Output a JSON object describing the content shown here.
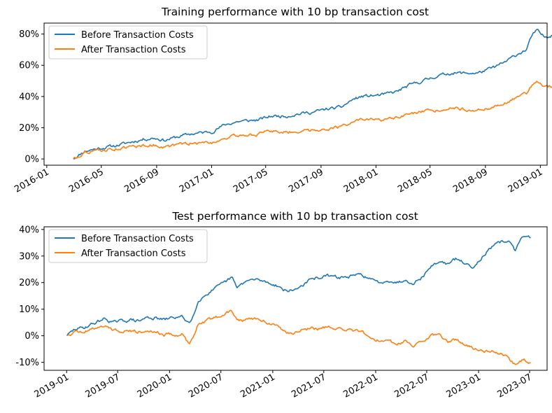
{
  "chart_data": [
    {
      "type": "line",
      "title": "Training performance with 10 bp transaction cost",
      "xlabel": "",
      "ylabel": "",
      "x_range": [
        "2015-12-26",
        "2019-01-16"
      ],
      "xticks": [
        {
          "date": "2016-01-01",
          "label": "2016-01"
        },
        {
          "date": "2016-05-01",
          "label": "2016-05"
        },
        {
          "date": "2016-09-01",
          "label": "2016-09"
        },
        {
          "date": "2017-01-01",
          "label": "2017-01"
        },
        {
          "date": "2017-05-01",
          "label": "2017-05"
        },
        {
          "date": "2017-09-01",
          "label": "2017-09"
        },
        {
          "date": "2018-01-01",
          "label": "2018-01"
        },
        {
          "date": "2018-05-01",
          "label": "2018-05"
        },
        {
          "date": "2018-09-01",
          "label": "2018-09"
        },
        {
          "date": "2019-01-01",
          "label": "2019-01"
        }
      ],
      "ylim": [
        -4,
        87
      ],
      "yticks": [
        {
          "value": 0,
          "label": "0%"
        },
        {
          "value": 20,
          "label": "20%"
        },
        {
          "value": 40,
          "label": "40%"
        },
        {
          "value": 60,
          "label": "60%"
        },
        {
          "value": 80,
          "label": "80%"
        }
      ],
      "grid": false,
      "legend_position": "top-left",
      "series": [
        {
          "name": "Before Transaction Costs",
          "color": "#1f77b4",
          "points": [
            [
              "2016-02-29",
              0
            ],
            [
              "2016-03-10",
              2
            ],
            [
              "2016-03-25",
              5
            ],
            [
              "2016-04-10",
              6
            ],
            [
              "2016-05-01",
              7
            ],
            [
              "2016-06-01",
              8.5
            ],
            [
              "2016-07-01",
              10.5
            ],
            [
              "2016-08-01",
              12.5
            ],
            [
              "2016-08-25",
              13.5
            ],
            [
              "2016-09-20",
              12
            ],
            [
              "2016-10-15",
              14
            ],
            [
              "2016-11-15",
              16
            ],
            [
              "2017-01-01",
              17.5
            ],
            [
              "2017-02-01",
              22
            ],
            [
              "2017-03-01",
              24
            ],
            [
              "2017-04-15",
              25
            ],
            [
              "2017-05-15",
              27.5
            ],
            [
              "2017-06-15",
              27.5
            ],
            [
              "2017-07-15",
              29
            ],
            [
              "2017-08-15",
              30
            ],
            [
              "2017-09-15",
              32
            ],
            [
              "2017-10-15",
              33
            ],
            [
              "2017-11-10",
              38
            ],
            [
              "2017-12-01",
              40
            ],
            [
              "2018-01-15",
              41
            ],
            [
              "2018-02-15",
              43
            ],
            [
              "2018-03-15",
              47
            ],
            [
              "2018-04-15",
              50
            ],
            [
              "2018-05-15",
              53
            ],
            [
              "2018-06-15",
              55
            ],
            [
              "2018-07-15",
              55
            ],
            [
              "2018-08-15",
              55
            ],
            [
              "2018-09-15",
              58
            ],
            [
              "2018-10-15",
              62
            ],
            [
              "2018-11-10",
              67
            ],
            [
              "2018-12-01",
              70
            ],
            [
              "2018-12-15",
              80
            ],
            [
              "2018-12-25",
              82
            ],
            [
              "2019-01-10",
              78
            ],
            [
              "2019-01-31",
              80
            ]
          ]
        },
        {
          "name": "After Transaction Costs",
          "color": "#ff7f0e",
          "points": [
            [
              "2016-02-29",
              0
            ],
            [
              "2016-03-10",
              1.5
            ],
            [
              "2016-03-25",
              4.5
            ],
            [
              "2016-04-10",
              5
            ],
            [
              "2016-05-01",
              5.5
            ],
            [
              "2016-06-01",
              6.5
            ],
            [
              "2016-07-01",
              7.5
            ],
            [
              "2016-08-01",
              8.5
            ],
            [
              "2016-08-25",
              9
            ],
            [
              "2016-09-20",
              7.5
            ],
            [
              "2016-10-15",
              9
            ],
            [
              "2016-11-15",
              10
            ],
            [
              "2017-01-01",
              10.5
            ],
            [
              "2017-02-01",
              13.5
            ],
            [
              "2017-03-01",
              15
            ],
            [
              "2017-04-15",
              16
            ],
            [
              "2017-05-15",
              18
            ],
            [
              "2017-06-15",
              17
            ],
            [
              "2017-07-15",
              18
            ],
            [
              "2017-08-15",
              18.5
            ],
            [
              "2017-09-15",
              19.5
            ],
            [
              "2017-10-15",
              20.5
            ],
            [
              "2017-11-10",
              24
            ],
            [
              "2017-12-01",
              25
            ],
            [
              "2018-01-15",
              25
            ],
            [
              "2018-02-15",
              26
            ],
            [
              "2018-03-15",
              28.5
            ],
            [
              "2018-04-15",
              30
            ],
            [
              "2018-05-15",
              31
            ],
            [
              "2018-06-15",
              33
            ],
            [
              "2018-07-15",
              32
            ],
            [
              "2018-08-15",
              31
            ],
            [
              "2018-09-15",
              33
            ],
            [
              "2018-10-15",
              36
            ],
            [
              "2018-11-10",
              39
            ],
            [
              "2018-12-01",
              42
            ],
            [
              "2018-12-15",
              48
            ],
            [
              "2018-12-25",
              50
            ],
            [
              "2019-01-10",
              46
            ],
            [
              "2019-01-31",
              47
            ]
          ]
        }
      ]
    },
    {
      "type": "line",
      "title": "Test performance with 10 bp transaction cost",
      "xlabel": "",
      "ylabel": "",
      "x_range": [
        "2018-10-13",
        "2023-09-01"
      ],
      "xticks": [
        {
          "date": "2019-01-01",
          "label": "2019-01"
        },
        {
          "date": "2019-07-01",
          "label": "2019-07"
        },
        {
          "date": "2020-01-01",
          "label": "2020-01"
        },
        {
          "date": "2020-07-01",
          "label": "2020-07"
        },
        {
          "date": "2021-01-01",
          "label": "2021-01"
        },
        {
          "date": "2021-07-01",
          "label": "2021-07"
        },
        {
          "date": "2022-01-01",
          "label": "2022-01"
        },
        {
          "date": "2022-07-01",
          "label": "2022-07"
        },
        {
          "date": "2023-01-01",
          "label": "2023-01"
        },
        {
          "date": "2023-07-01",
          "label": "2023-07"
        }
      ],
      "ylim": [
        -13,
        41
      ],
      "yticks": [
        {
          "value": -10,
          "label": "-10%"
        },
        {
          "value": 0,
          "label": "0%"
        },
        {
          "value": 10,
          "label": "10%"
        },
        {
          "value": 20,
          "label": "20%"
        },
        {
          "value": 30,
          "label": "30%"
        },
        {
          "value": 40,
          "label": "40%"
        }
      ],
      "grid": false,
      "legend_position": "top-left",
      "series": [
        {
          "name": "Before Transaction Costs",
          "color": "#1f77b4",
          "points": [
            [
              "2019-01-02",
              0
            ],
            [
              "2019-02-01",
              2.5
            ],
            [
              "2019-03-01",
              3
            ],
            [
              "2019-04-15",
              5
            ],
            [
              "2019-05-15",
              6.5
            ],
            [
              "2019-06-15",
              5
            ],
            [
              "2019-07-15",
              5.5
            ],
            [
              "2019-08-15",
              6
            ],
            [
              "2019-09-15",
              5.5
            ],
            [
              "2019-10-15",
              7
            ],
            [
              "2019-11-15",
              6.5
            ],
            [
              "2019-12-15",
              6
            ],
            [
              "2020-01-15",
              7
            ],
            [
              "2020-02-15",
              7
            ],
            [
              "2020-03-10",
              5
            ],
            [
              "2020-03-20",
              6
            ],
            [
              "2020-04-10",
              13
            ],
            [
              "2020-05-15",
              16
            ],
            [
              "2020-06-15",
              18
            ],
            [
              "2020-07-15",
              20
            ],
            [
              "2020-08-10",
              22
            ],
            [
              "2020-08-25",
              18
            ],
            [
              "2020-09-20",
              20
            ],
            [
              "2020-10-15",
              21
            ],
            [
              "2020-11-15",
              21
            ],
            [
              "2020-12-15",
              20
            ],
            [
              "2021-01-15",
              19
            ],
            [
              "2021-02-15",
              17
            ],
            [
              "2021-03-15",
              17
            ],
            [
              "2021-04-15",
              19
            ],
            [
              "2021-05-15",
              21
            ],
            [
              "2021-06-15",
              22
            ],
            [
              "2021-07-15",
              22.5
            ],
            [
              "2021-08-15",
              22
            ],
            [
              "2021-09-15",
              22
            ],
            [
              "2021-10-15",
              22.5
            ],
            [
              "2021-11-15",
              23
            ],
            [
              "2021-12-15",
              21
            ],
            [
              "2022-01-15",
              20
            ],
            [
              "2022-02-15",
              21
            ],
            [
              "2022-03-15",
              20
            ],
            [
              "2022-04-15",
              21
            ],
            [
              "2022-05-15",
              20
            ],
            [
              "2022-06-15",
              22
            ],
            [
              "2022-07-15",
              26
            ],
            [
              "2022-08-15",
              28
            ],
            [
              "2022-09-15",
              27
            ],
            [
              "2022-10-15",
              29
            ],
            [
              "2022-11-15",
              27
            ],
            [
              "2022-12-15",
              26
            ],
            [
              "2023-01-15",
              30
            ],
            [
              "2023-02-15",
              33
            ],
            [
              "2023-03-15",
              35
            ],
            [
              "2023-04-15",
              36
            ],
            [
              "2023-05-10",
              32
            ],
            [
              "2023-05-25",
              35
            ],
            [
              "2023-06-10",
              38
            ],
            [
              "2023-07-05",
              37
            ]
          ]
        },
        {
          "name": "After Transaction Costs",
          "color": "#ff7f0e",
          "points": [
            [
              "2019-01-02",
              0
            ],
            [
              "2019-02-01",
              1.5
            ],
            [
              "2019-03-01",
              1.5
            ],
            [
              "2019-04-15",
              3
            ],
            [
              "2019-05-15",
              4
            ],
            [
              "2019-06-15",
              2
            ],
            [
              "2019-07-15",
              2
            ],
            [
              "2019-08-15",
              2
            ],
            [
              "2019-09-15",
              1.5
            ],
            [
              "2019-10-15",
              2.5
            ],
            [
              "2019-11-15",
              1.5
            ],
            [
              "2019-12-15",
              0.5
            ],
            [
              "2020-01-15",
              0.5
            ],
            [
              "2020-02-15",
              0.5
            ],
            [
              "2020-03-10",
              -3
            ],
            [
              "2020-03-20",
              -1
            ],
            [
              "2020-04-10",
              4
            ],
            [
              "2020-05-15",
              6
            ],
            [
              "2020-06-15",
              7
            ],
            [
              "2020-07-15",
              8
            ],
            [
              "2020-08-10",
              9.5
            ],
            [
              "2020-08-25",
              6
            ],
            [
              "2020-09-20",
              6
            ],
            [
              "2020-10-15",
              6.5
            ],
            [
              "2020-11-15",
              6
            ],
            [
              "2020-12-15",
              5
            ],
            [
              "2021-01-15",
              3.5
            ],
            [
              "2021-02-15",
              1
            ],
            [
              "2021-03-15",
              1
            ],
            [
              "2021-04-15",
              2
            ],
            [
              "2021-05-15",
              3
            ],
            [
              "2021-06-15",
              2.5
            ],
            [
              "2021-07-15",
              3.5
            ],
            [
              "2021-08-15",
              2.5
            ],
            [
              "2021-09-15",
              2
            ],
            [
              "2021-10-15",
              2
            ],
            [
              "2021-11-15",
              1.5
            ],
            [
              "2021-12-15",
              -1
            ],
            [
              "2022-01-15",
              -2
            ],
            [
              "2022-02-15",
              -2
            ],
            [
              "2022-03-15",
              -3
            ],
            [
              "2022-04-15",
              -2
            ],
            [
              "2022-05-15",
              -4
            ],
            [
              "2022-06-15",
              -2
            ],
            [
              "2022-07-15",
              0
            ],
            [
              "2022-08-15",
              0
            ],
            [
              "2022-09-15",
              -2
            ],
            [
              "2022-10-15",
              -1.5
            ],
            [
              "2022-11-15",
              -3.5
            ],
            [
              "2022-12-15",
              -5
            ],
            [
              "2023-01-15",
              -6
            ],
            [
              "2023-02-15",
              -5.5
            ],
            [
              "2023-03-15",
              -6.5
            ],
            [
              "2023-04-15",
              -8
            ],
            [
              "2023-05-10",
              -11
            ],
            [
              "2023-05-25",
              -10
            ],
            [
              "2023-06-10",
              -9
            ],
            [
              "2023-07-05",
              -10.5
            ]
          ]
        }
      ]
    }
  ]
}
